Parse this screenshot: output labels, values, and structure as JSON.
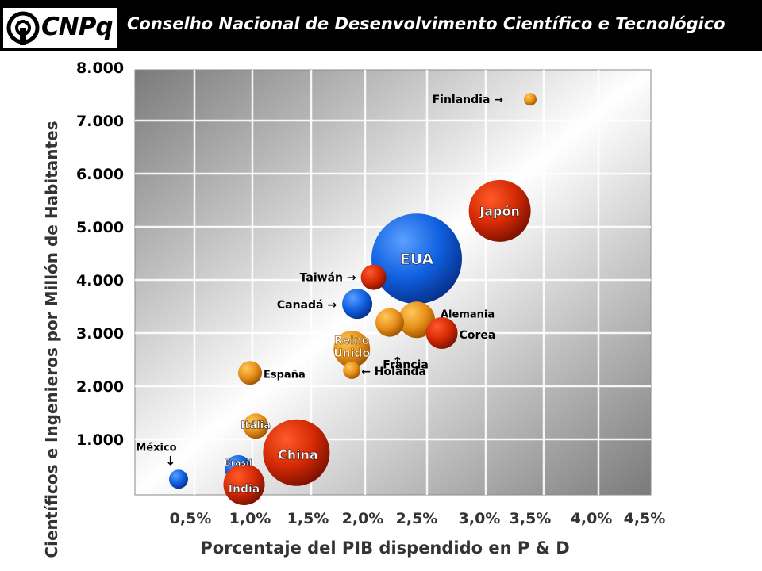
{
  "header": {
    "logo_text": "CNPq",
    "title": "Conselho Nacional de Desenvolvimento Científico e Tecnológico"
  },
  "chart_data": {
    "type": "scatter",
    "title": "",
    "xlabel": "Porcentaje del PIB dispendido en P & D",
    "ylabel": "Científicos e Ingenieros por Millón de Habitantes",
    "xlim": [
      0,
      4.5
    ],
    "ylim": [
      0,
      8000
    ],
    "x_ticks": [
      {
        "value": 0.5,
        "label": "0,5%"
      },
      {
        "value": 1.0,
        "label": "1,0%"
      },
      {
        "value": 1.5,
        "label": "1,5%"
      },
      {
        "value": 2.0,
        "label": "2,0%"
      },
      {
        "value": 2.5,
        "label": "2,5%"
      },
      {
        "value": 3.0,
        "label": "3,0%"
      },
      {
        "value": 3.5,
        "label": "3,5%"
      },
      {
        "value": 4.0,
        "label": "4,0%"
      },
      {
        "value": 4.5,
        "label": "4,5%"
      }
    ],
    "y_ticks": [
      {
        "value": 1000,
        "label": "1.000"
      },
      {
        "value": 2000,
        "label": "2.000"
      },
      {
        "value": 3000,
        "label": "3.000"
      },
      {
        "value": 4000,
        "label": "4.000"
      },
      {
        "value": 5000,
        "label": "5.000"
      },
      {
        "value": 6000,
        "label": "6.000"
      },
      {
        "value": 7000,
        "label": "7.000"
      },
      {
        "value": 8000,
        "label": "8.000"
      }
    ],
    "grid": true,
    "points": [
      {
        "label": "Finlandia →",
        "x": 3.5,
        "y": 7400,
        "color": "orange"
      },
      {
        "label": "Japón",
        "x": 3.2,
        "y": 5300,
        "color": "red"
      },
      {
        "label": "EUA",
        "x": 2.5,
        "y": 4400,
        "color": "blue"
      },
      {
        "label": "Taiwán →",
        "x": 2.1,
        "y": 4050,
        "color": "red"
      },
      {
        "label": "Canadá →",
        "x": 1.95,
        "y": 3550,
        "color": "blue"
      },
      {
        "label": "Alemania",
        "x": 2.5,
        "y": 3250,
        "color": "orange"
      },
      {
        "label": "Corea",
        "x": 2.7,
        "y": 3000,
        "color": "red"
      },
      {
        "label": "Francia",
        "x": 2.25,
        "y": 3200,
        "color": "orange"
      },
      {
        "label": "Reino Unido",
        "x": 1.9,
        "y": 2700,
        "color": "orange"
      },
      {
        "label": "← Holanda",
        "x": 1.9,
        "y": 2300,
        "color": "orange"
      },
      {
        "label": "España",
        "x": 1.0,
        "y": 2250,
        "color": "orange"
      },
      {
        "label": "Itália",
        "x": 1.05,
        "y": 1250,
        "color": "orange"
      },
      {
        "label": "China",
        "x": 1.4,
        "y": 750,
        "color": "red"
      },
      {
        "label": "Brasil",
        "x": 0.9,
        "y": 450,
        "color": "blue"
      },
      {
        "label": "India",
        "x": 0.95,
        "y": 150,
        "color": "red"
      },
      {
        "label": "México",
        "x": 0.4,
        "y": 250,
        "color": "blue"
      }
    ]
  }
}
